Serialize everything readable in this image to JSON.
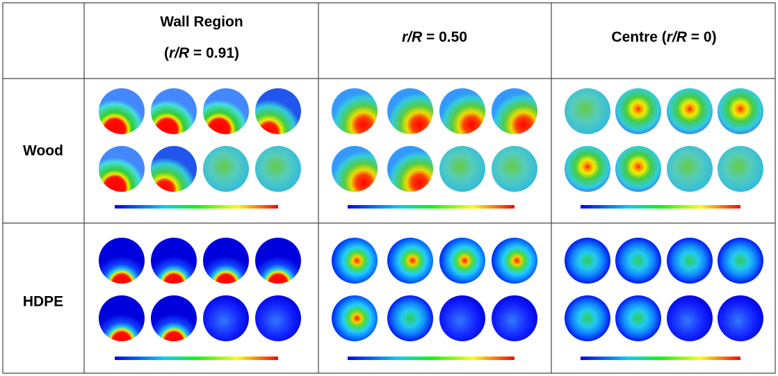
{
  "header": {
    "columns": [
      {
        "lines": [
          [
            "Wall Region"
          ],
          [
            "(",
            "r/R",
            " = 0.91)"
          ]
        ]
      },
      {
        "lines": [
          [
            "r/R",
            " = 0.50"
          ]
        ]
      },
      {
        "lines": [
          [
            "Centre (",
            "r/R",
            " = 0)"
          ]
        ]
      }
    ]
  },
  "rows": [
    {
      "label": "Wood"
    },
    {
      "label": "HDPE"
    }
  ]
}
